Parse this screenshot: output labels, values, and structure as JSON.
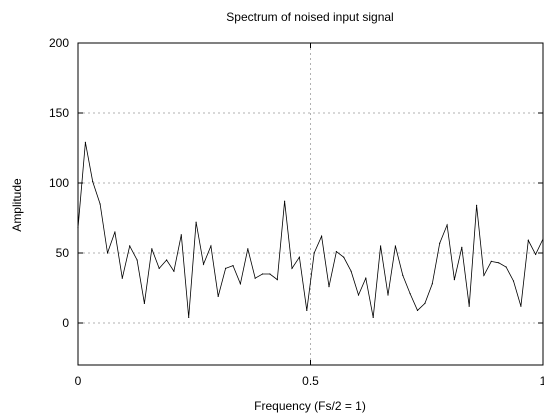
{
  "chart_data": {
    "type": "line",
    "title": "Spectrum of noised input signal",
    "xlabel": "Frequency (Fs/2 = 1)",
    "ylabel": "Amplitude",
    "xlim": [
      0,
      1
    ],
    "ylim": [
      -30,
      200
    ],
    "xticks": [
      "0",
      "0.5",
      "1"
    ],
    "yticks": [
      "0",
      "50",
      "100",
      "150",
      "200"
    ],
    "grid": true,
    "line_color": "#000000",
    "grid_color": "#b0b0b0",
    "series": [
      {
        "x": [
          0,
          0.0159,
          0.0317,
          0.0476,
          0.0635,
          0.0794,
          0.0952,
          0.1111,
          0.127,
          0.1429,
          0.1587,
          0.1746,
          0.1905,
          0.2063,
          0.2222,
          0.2381,
          0.254,
          0.2698,
          0.2857,
          0.3016,
          0.3175,
          0.3333,
          0.3492,
          0.3651,
          0.381,
          0.3968,
          0.4127,
          0.4286,
          0.4444,
          0.4603,
          0.4762,
          0.4921,
          0.5079,
          0.5238,
          0.5397,
          0.5556,
          0.5714,
          0.5873,
          0.6032,
          0.619,
          0.6349,
          0.6508,
          0.6667,
          0.6825,
          0.6984,
          0.7143,
          0.7302,
          0.746,
          0.7619,
          0.7778,
          0.7937,
          0.8095,
          0.8254,
          0.8413,
          0.8571,
          0.873,
          0.8889,
          0.9048,
          0.9206,
          0.9365,
          0.9524,
          0.9683,
          0.9841,
          1.0
        ],
        "y": [
          68,
          129,
          101,
          85,
          50,
          65,
          32,
          55,
          45,
          14,
          53,
          39,
          45,
          37,
          63,
          4,
          72,
          42,
          55,
          19,
          39,
          41,
          28,
          53,
          32,
          35,
          35,
          31,
          87,
          39,
          47,
          9,
          50,
          62,
          26,
          51,
          47,
          37,
          20,
          32,
          4,
          55,
          20,
          55,
          34,
          21,
          9,
          14,
          28,
          57,
          70,
          31,
          54,
          12,
          84,
          34,
          44,
          43,
          40,
          30,
          12,
          59,
          49,
          60
        ]
      }
    ]
  }
}
